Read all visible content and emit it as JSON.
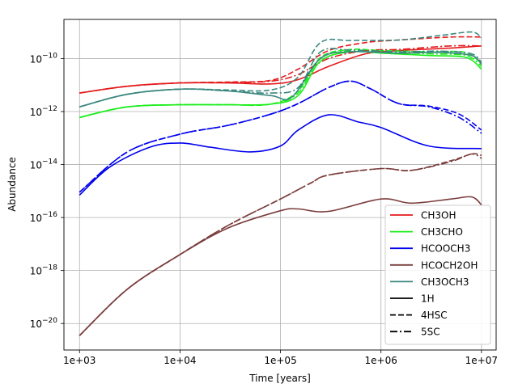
{
  "chart_data": {
    "type": "line",
    "title": "",
    "xlabel": "Time [years]",
    "ylabel": "Abundance",
    "x_scale": "log",
    "y_scale": "log",
    "xlim": [
      700,
      14000000
    ],
    "ylim": [
      1e-21,
      3e-09
    ],
    "grid": true,
    "legend_position": "lower-right",
    "x_ticks": [
      {
        "value": 1000,
        "label": "1e+03"
      },
      {
        "value": 10000,
        "label": "1e+04"
      },
      {
        "value": 100000,
        "label": "1e+05"
      },
      {
        "value": 1000000,
        "label": "1e+06"
      },
      {
        "value": 10000000,
        "label": "1e+07"
      }
    ],
    "y_ticks": [
      {
        "value": 1e-20,
        "base": "10",
        "exp": "−20"
      },
      {
        "value": 1e-18,
        "base": "10",
        "exp": "−18"
      },
      {
        "value": 1e-16,
        "base": "10",
        "exp": "−16"
      },
      {
        "value": 1e-14,
        "base": "10",
        "exp": "−14"
      },
      {
        "value": 1e-12,
        "base": "10",
        "exp": "−12"
      },
      {
        "value": 1e-10,
        "base": "10",
        "exp": "−10"
      }
    ],
    "species": [
      {
        "name": "CH3OH",
        "color": "#e41a1c"
      },
      {
        "name": "CH3CHO",
        "color": "#1aee1a"
      },
      {
        "name": "HCOOCH3",
        "color": "#0000ee"
      },
      {
        "name": "HCOCH2OH",
        "color": "#7b3c3c"
      },
      {
        "name": "CH3OCH3",
        "color": "#3a877f"
      }
    ],
    "models": [
      {
        "name": "1H",
        "dash": "solid"
      },
      {
        "name": "4HSC",
        "dash": "dashed"
      },
      {
        "name": "5SC",
        "dash": "dashdot"
      }
    ],
    "series": [
      {
        "species": "CH3OH",
        "model": "5SC",
        "x": [
          1000,
          3000,
          10000,
          30000,
          80000,
          150000,
          300000,
          700000,
          1500000,
          5000000,
          10000000
        ],
        "y": [
          5e-12,
          9e-12,
          1.2e-11,
          1.25e-11,
          1.4e-11,
          2.5e-11,
          1e-10,
          2e-10,
          2.2e-10,
          3e-10,
          3e-10
        ]
      },
      {
        "species": "CH3OH",
        "model": "4HSC",
        "x": [
          1000,
          3000,
          10000,
          30000,
          80000,
          150000,
          300000,
          700000,
          1500000,
          5000000,
          10000000
        ],
        "y": [
          5e-12,
          9e-12,
          1.2e-11,
          1.3e-11,
          1.5e-11,
          4e-11,
          2e-10,
          4e-10,
          5e-10,
          6.5e-10,
          6.5e-10
        ]
      },
      {
        "species": "CH3OH",
        "model": "1H",
        "x": [
          1000,
          3000,
          10000,
          30000,
          80000,
          150000,
          300000,
          700000,
          1500000,
          5000000,
          10000000
        ],
        "y": [
          5e-12,
          9e-12,
          1.2e-11,
          1.2e-11,
          1.1e-11,
          1.6e-11,
          5e-11,
          1.5e-10,
          2e-10,
          2.5e-10,
          3e-10
        ]
      },
      {
        "species": "CH3CHO",
        "model": "5SC",
        "x": [
          1000,
          3000,
          10000,
          30000,
          80000,
          150000,
          250000,
          500000,
          1000000,
          3000000,
          7000000,
          10000000
        ],
        "y": [
          6e-13,
          1.5e-12,
          1.8e-12,
          1.8e-12,
          1.9e-12,
          5e-12,
          1e-10,
          2e-10,
          1.8e-10,
          1.5e-10,
          1.3e-10,
          5e-11
        ]
      },
      {
        "species": "CH3CHO",
        "model": "4HSC",
        "x": [
          1000,
          3000,
          10000,
          30000,
          80000,
          150000,
          250000,
          500000,
          1000000,
          3000000,
          7000000,
          10000000
        ],
        "y": [
          6e-13,
          1.5e-12,
          1.8e-12,
          1.8e-12,
          1.9e-12,
          6e-12,
          1.1e-10,
          2.2e-10,
          2e-10,
          1.8e-10,
          1.7e-10,
          6e-11
        ]
      },
      {
        "species": "CH3CHO",
        "model": "1H",
        "x": [
          1000,
          3000,
          10000,
          30000,
          80000,
          150000,
          250000,
          500000,
          1000000,
          3000000,
          7000000,
          10000000
        ],
        "y": [
          6e-13,
          1.5e-12,
          1.8e-12,
          1.8e-12,
          1.9e-12,
          4e-12,
          8e-11,
          1.8e-10,
          1.6e-10,
          1.3e-10,
          1.1e-10,
          4e-11
        ]
      },
      {
        "species": "HCOOCH3",
        "model": "5SC",
        "x": [
          1000,
          3000,
          10000,
          30000,
          80000,
          150000,
          300000,
          500000,
          800000,
          1500000,
          3000000,
          6000000,
          10000000
        ],
        "y": [
          9e-16,
          3e-14,
          1.4e-13,
          3e-13,
          8e-13,
          2e-12,
          8e-12,
          1.4e-11,
          7e-12,
          2e-12,
          1.5e-12,
          6e-13,
          1.5e-13
        ]
      },
      {
        "species": "HCOOCH3",
        "model": "4HSC",
        "x": [
          1000,
          3000,
          10000,
          30000,
          80000,
          150000,
          300000,
          500000,
          800000,
          1500000,
          3000000,
          6000000,
          10000000
        ],
        "y": [
          9e-16,
          3e-14,
          1.4e-13,
          3e-13,
          8e-13,
          2e-12,
          8e-12,
          1.4e-11,
          7e-12,
          2e-12,
          1.6e-12,
          8e-13,
          2e-13
        ]
      },
      {
        "species": "HCOOCH3",
        "model": "1H",
        "x": [
          1000,
          2000,
          5000,
          10000,
          20000,
          50000,
          100000,
          150000,
          300000,
          600000,
          1000000,
          3000000,
          10000000
        ],
        "y": [
          7e-16,
          8e-15,
          4.5e-14,
          6.5e-14,
          4.5e-14,
          3e-14,
          5e-14,
          2e-13,
          7.5e-13,
          4e-13,
          2.5e-13,
          5e-14,
          4e-14
        ]
      },
      {
        "species": "HCOCH2OH",
        "model": "5SC",
        "x": [
          1000,
          3000,
          10000,
          30000,
          100000,
          200000,
          300000,
          1000000,
          2000000,
          5000000,
          8000000,
          10000000
        ],
        "y": [
          3.5e-21,
          2e-19,
          4e-18,
          5e-17,
          5e-16,
          2e-15,
          4e-15,
          7e-15,
          6e-15,
          1.3e-14,
          2.5e-14,
          1.7e-14
        ]
      },
      {
        "species": "HCOCH2OH",
        "model": "4HSC",
        "x": [
          1000,
          3000,
          10000,
          30000,
          100000,
          200000,
          300000,
          1000000,
          2000000,
          5000000,
          8000000,
          10000000
        ],
        "y": [
          3.5e-21,
          2e-19,
          4e-18,
          5e-17,
          5e-16,
          2e-15,
          4e-15,
          7e-15,
          6e-15,
          1.4e-14,
          2.5e-14,
          2.2e-14
        ]
      },
      {
        "species": "HCOCH2OH",
        "model": "1H",
        "x": [
          1000,
          3000,
          10000,
          30000,
          100000,
          150000,
          300000,
          1000000,
          2000000,
          5000000,
          8000000,
          10000000
        ],
        "y": [
          3.5e-21,
          2e-19,
          4e-18,
          4e-17,
          1.8e-16,
          2.1e-16,
          1.7e-16,
          5e-16,
          3.5e-16,
          5e-16,
          6e-16,
          3e-16
        ]
      },
      {
        "species": "CH3OCH3",
        "model": "5SC",
        "x": [
          1000,
          3000,
          10000,
          30000,
          80000,
          150000,
          250000,
          500000,
          1500000,
          4000000,
          8000000,
          10000000
        ],
        "y": [
          1.5e-12,
          4.5e-12,
          7e-12,
          6e-12,
          5e-12,
          8e-12,
          1.8e-10,
          2.1e-10,
          1.8e-10,
          1.9e-10,
          1.5e-10,
          7e-11
        ]
      },
      {
        "species": "CH3OCH3",
        "model": "4HSC",
        "x": [
          1000,
          3000,
          10000,
          30000,
          80000,
          150000,
          250000,
          500000,
          1500000,
          4000000,
          8000000,
          10000000
        ],
        "y": [
          1.5e-12,
          4.5e-12,
          7e-12,
          6.5e-12,
          6.5e-12,
          2e-11,
          4e-10,
          4.8e-10,
          5e-10,
          7.5e-10,
          1e-09,
          6e-10
        ]
      },
      {
        "species": "CH3OCH3",
        "model": "1H",
        "x": [
          1000,
          3000,
          10000,
          30000,
          80000,
          130000,
          250000,
          500000,
          1500000,
          4000000,
          8000000,
          10000000
        ],
        "y": [
          1.5e-12,
          4.5e-12,
          7e-12,
          6e-12,
          4e-12,
          3.5e-12,
          1e-10,
          1.8e-10,
          1.6e-10,
          1.7e-10,
          1.3e-10,
          6e-11
        ]
      }
    ]
  }
}
